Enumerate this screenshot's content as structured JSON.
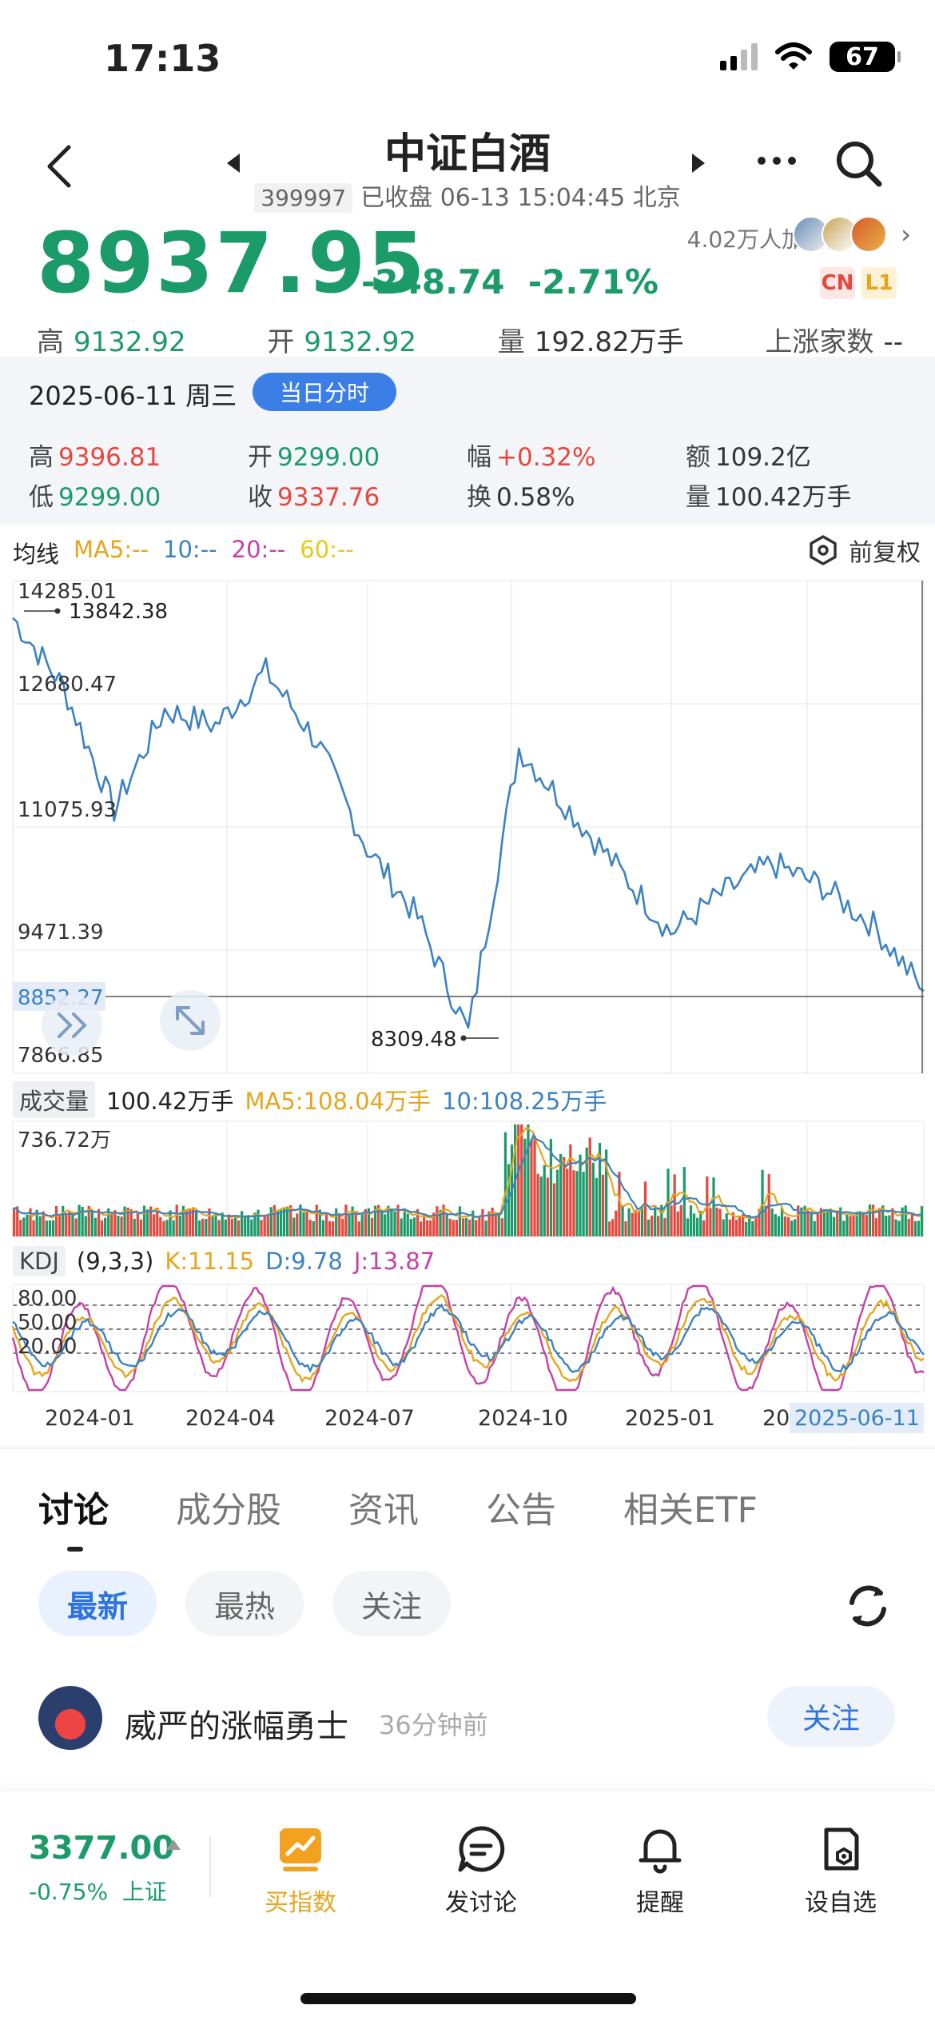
{
  "status_bar": {
    "time": "17:13",
    "battery": "67"
  },
  "header": {
    "title": "中证白酒",
    "code": "399997",
    "status_text": "已收盘 06-13 15:04:45 北京"
  },
  "quote": {
    "price": "8937.95",
    "change": "-248.74",
    "change_pct": "-2.71%",
    "followers": "4.02万人加自选",
    "tag_cn": "CN",
    "tag_l1": "L1",
    "high_label": "高",
    "high": "9132.92",
    "open_label": "开",
    "open": "9132.92",
    "volume_label": "量",
    "volume": "192.82万手",
    "up_count_label": "上涨家数",
    "up_count": "--"
  },
  "day_panel": {
    "date": "2025-06-11 周三",
    "intraday_button": "当日分时",
    "high_label": "高",
    "high": "9396.81",
    "open_label": "开",
    "open": "9299.00",
    "amp_label": "幅",
    "amp": "+0.32%",
    "amount_label": "额",
    "amount": "109.2亿",
    "low_label": "低",
    "low": "9299.00",
    "close_label": "收",
    "close": "9337.76",
    "turnover_label": "换",
    "turnover": "0.58%",
    "vol_label": "量",
    "vol": "100.42万手"
  },
  "ma_row": {
    "label": "均线",
    "ma5": "MA5:--",
    "ma10": "10:--",
    "ma20": "20:--",
    "ma60": "60:--",
    "adjust_button": "前复权"
  },
  "volume_row": {
    "label": "成交量",
    "value": "100.42万手",
    "ma5": "MA5:108.04万手",
    "ma10": "10:108.25万手",
    "max_label": "736.72万"
  },
  "kdj_row": {
    "label": "KDJ",
    "params": "(9,3,3)",
    "k": "K:11.15",
    "d": "D:9.78",
    "j": "J:13.87",
    "levels": [
      "80.00",
      "50.00",
      "20.00"
    ]
  },
  "chart_data": {
    "type": "line",
    "y_ticks": [
      "14285.01",
      "12680.47",
      "11075.93",
      "9471.39",
      "7866.85"
    ],
    "ylim": [
      7866.85,
      14285.01
    ],
    "current_level": "8852.27",
    "annotations": {
      "high": "13842.38",
      "low": "8309.48"
    },
    "x_ticks": [
      "2024-01",
      "2024-04",
      "2024-07",
      "2024-10",
      "2025-01",
      "20"
    ],
    "x_end_label": "2025-06-11",
    "x": [
      "2023-12",
      "2024-01",
      "2024-02",
      "2024-03",
      "2024-04",
      "2024-05",
      "2024-06",
      "2024-07",
      "2024-08",
      "2024-09",
      "2024-10",
      "2024-11",
      "2024-12",
      "2025-01",
      "2025-02",
      "2025-03",
      "2025-04",
      "2025-05",
      "2025-06"
    ],
    "values": [
      13800,
      12900,
      11300,
      12600,
      12400,
      13100,
      12200,
      10800,
      9900,
      8400,
      12100,
      11300,
      10500,
      9700,
      10200,
      10600,
      10300,
      9800,
      8940
    ]
  },
  "discussion": {
    "tabs": [
      "讨论",
      "成分股",
      "资讯",
      "公告",
      "相关ETF"
    ],
    "filters": [
      "最新",
      "最热",
      "关注"
    ],
    "post": {
      "user": "威严的涨幅勇士",
      "time": "36分钟前",
      "follow": "关注"
    }
  },
  "bottom_bar": {
    "index_price": "3377.00",
    "index_change": "-0.75%",
    "index_name": "上证",
    "buttons": [
      "买指数",
      "发讨论",
      "提醒",
      "设自选"
    ]
  },
  "colors": {
    "down_green": "#1c9b6a",
    "up_red": "#e5483e",
    "price_line": "#3b82c4",
    "accent_blue": "#3b7fe6",
    "ma5": "#e8a41a",
    "ma10": "#3b82c4",
    "ma20": "#c73fa8",
    "ma60": "#e8c81a"
  }
}
